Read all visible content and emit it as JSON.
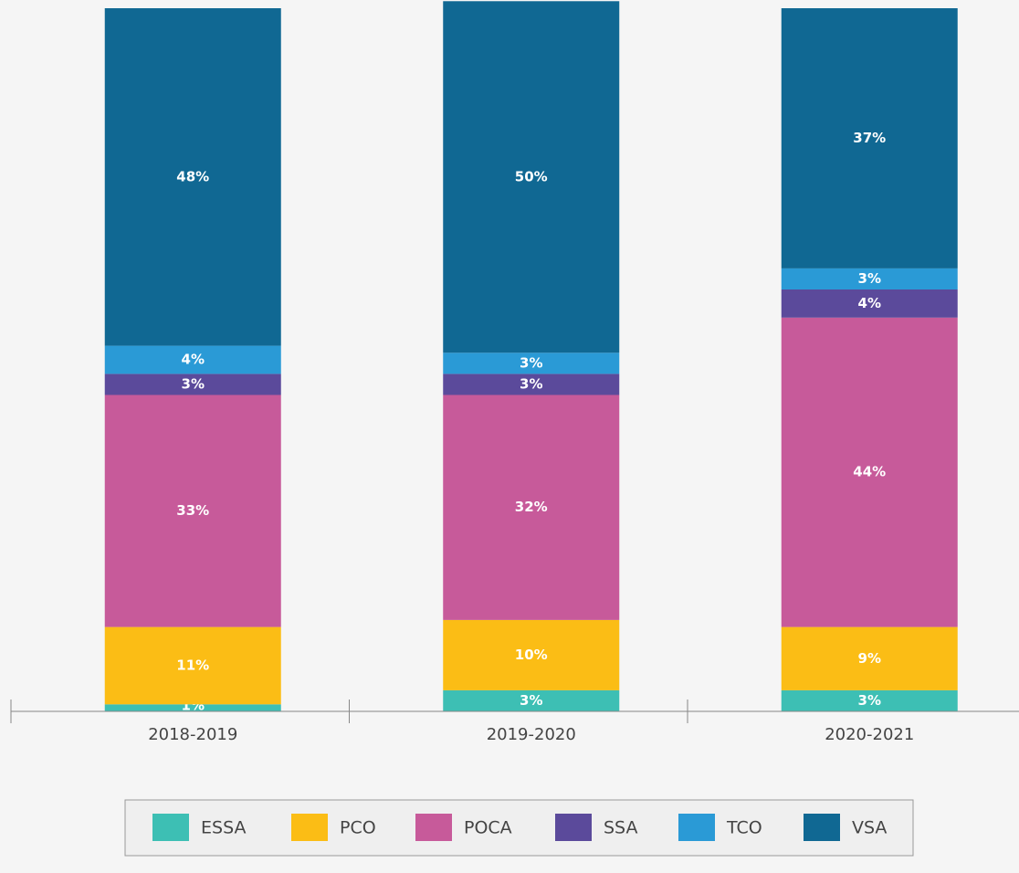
{
  "chart_data": {
    "type": "stacked_bar",
    "categories": [
      "2018-2019",
      "2019-2020",
      "2020-2021"
    ],
    "ylim": [
      0,
      100
    ],
    "series": [
      {
        "name": "ESSA",
        "color": "#3dbfb4",
        "values": [
          1,
          3,
          3
        ],
        "value_labels": [
          "1%",
          "3%",
          "3%"
        ]
      },
      {
        "name": "PCO",
        "color": "#fbbd15",
        "values": [
          11,
          10,
          9
        ],
        "value_labels": [
          "11%",
          "10%",
          "9%"
        ]
      },
      {
        "name": "POCA",
        "color": "#c75a9a",
        "values": [
          33,
          32,
          44
        ],
        "value_labels": [
          "33%",
          "32%",
          "44%"
        ]
      },
      {
        "name": "SSA",
        "color": "#5b4a9b",
        "values": [
          3,
          3,
          4
        ],
        "value_labels": [
          "3%",
          "3%",
          "4%"
        ]
      },
      {
        "name": "TCO",
        "color": "#2a9ad6",
        "values": [
          4,
          3,
          3
        ],
        "value_labels": [
          "4%",
          "3%",
          "3%"
        ]
      },
      {
        "name": "VSA",
        "color": "#106893",
        "values": [
          48,
          50,
          37
        ],
        "value_labels": [
          "48%",
          "50%",
          "37%"
        ]
      }
    ],
    "legend": "bottom"
  }
}
